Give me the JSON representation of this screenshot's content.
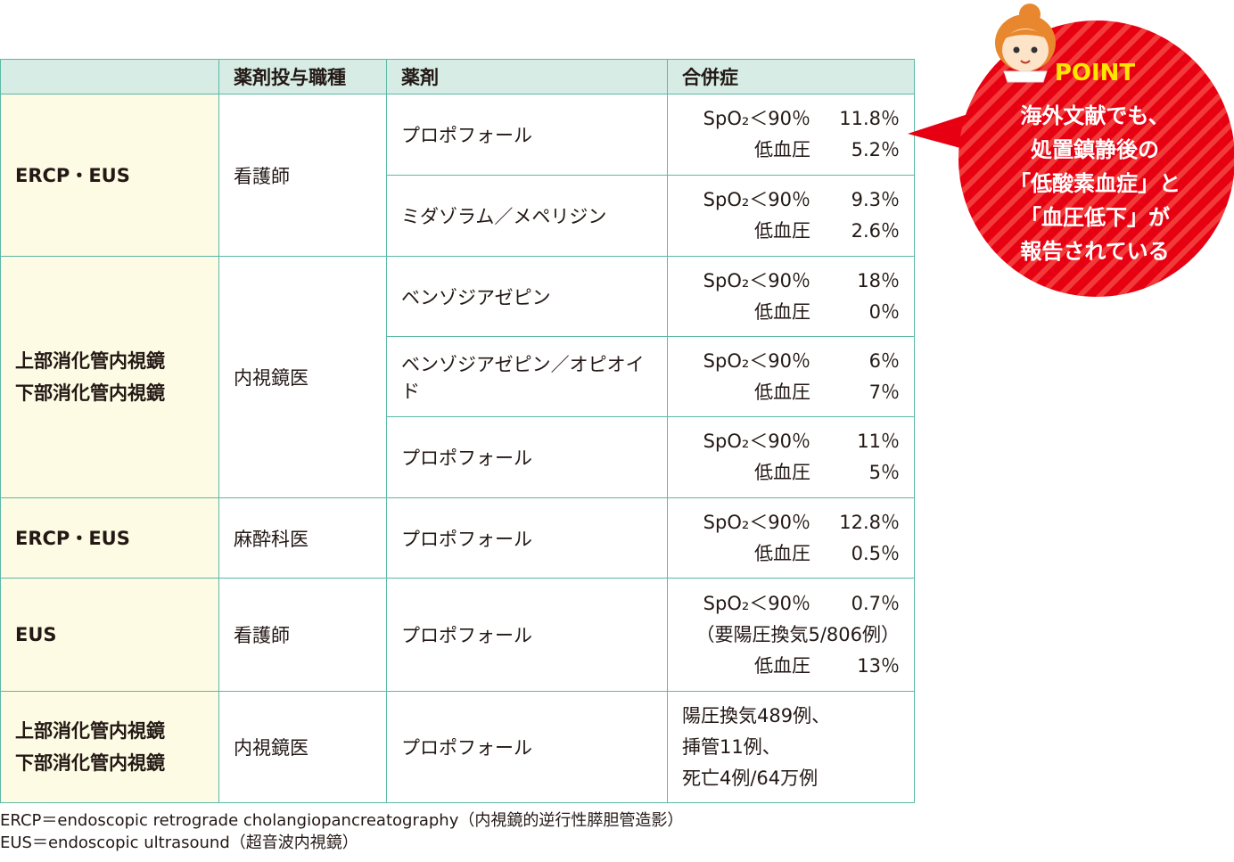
{
  "table": {
    "header": [
      "薬剤投与職種",
      "薬剤",
      "合併症"
    ],
    "groups": [
      {
        "procedure": [
          "ERCP・EUS"
        ],
        "staff": "看護師",
        "rows": [
          {
            "drug": "プロポフォール",
            "lines": [
              {
                "label": "SpO₂＜90％",
                "value": "11.8％"
              },
              {
                "label": "低血圧",
                "value": "5.2％"
              }
            ]
          },
          {
            "drug": "ミダゾラム／メペリジン",
            "lines": [
              {
                "label": "SpO₂＜90％",
                "value": "9.3％"
              },
              {
                "label": "低血圧",
                "value": "2.6％"
              }
            ]
          }
        ]
      },
      {
        "procedure": [
          "上部消化管内視鏡",
          "下部消化管内視鏡"
        ],
        "staff": "内視鏡医",
        "rows": [
          {
            "drug": "ベンゾジアゼピン",
            "lines": [
              {
                "label": "SpO₂＜90％",
                "value": "18％"
              },
              {
                "label": "低血圧",
                "value": "0％"
              }
            ]
          },
          {
            "drug": "ベンゾジアゼピン／オピオイド",
            "lines": [
              {
                "label": "SpO₂＜90％",
                "value": "6％"
              },
              {
                "label": "低血圧",
                "value": "7％"
              }
            ]
          },
          {
            "drug": "プロポフォール",
            "lines": [
              {
                "label": "SpO₂＜90％",
                "value": "11％"
              },
              {
                "label": "低血圧",
                "value": "5％"
              }
            ]
          }
        ]
      },
      {
        "procedure": [
          "ERCP・EUS"
        ],
        "staff": "麻酔科医",
        "rows": [
          {
            "drug": "プロポフォール",
            "lines": [
              {
                "label": "SpO₂＜90％",
                "value": "12.8％"
              },
              {
                "label": "低血圧",
                "value": "0.5％"
              }
            ]
          }
        ]
      },
      {
        "procedure": [
          "EUS"
        ],
        "staff": "看護師",
        "rows": [
          {
            "drug": "プロポフォール",
            "lines": [
              {
                "label": "SpO₂＜90％",
                "value": "0.7％"
              },
              {
                "text": "（要陽圧換気5/806例）"
              },
              {
                "label": "低血圧",
                "value": "13％"
              }
            ]
          }
        ]
      },
      {
        "procedure": [
          "上部消化管内視鏡",
          "下部消化管内視鏡"
        ],
        "staff": "内視鏡医",
        "rows": [
          {
            "drug": "プロポフォール",
            "lines": [
              {
                "text": "陽圧換気489例、"
              },
              {
                "text": "挿管11例、"
              },
              {
                "text": "死亡4例/64万例"
              }
            ]
          }
        ]
      }
    ]
  },
  "footnotes": [
    "ERCP＝endoscopic retrograde cholangiopancreatography（内視鏡的逆行性膵胆管造影）",
    "EUS＝endoscopic ultrasound（超音波内視鏡）"
  ],
  "callout": {
    "heading": "POINT",
    "lines": [
      "海外文献でも、",
      "処置鎮静後の",
      "「低酸素血症」と",
      "「血圧低下」が",
      "報告されている"
    ]
  }
}
